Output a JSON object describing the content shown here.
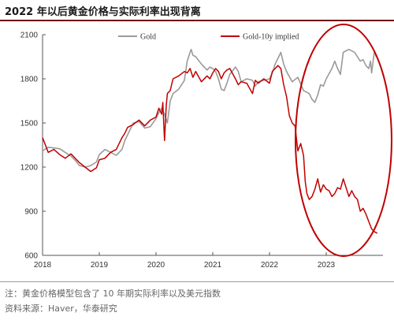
{
  "title": "2022 年以后黄金价格与实际利率出现背离",
  "notes": [
    "注：黄金价格模型包含了 10 年期实际利率以及美元指数",
    "资料来源：Haver，华泰研究"
  ],
  "colors": {
    "gold": "#9a9a9a",
    "implied": "#c00000",
    "ellipse": "#c00000",
    "rule": "#6b0f0f"
  },
  "chart_data": {
    "type": "line",
    "title": "",
    "xlabel": "",
    "ylabel": "",
    "ylim": [
      600,
      2100
    ],
    "yticks": [
      600,
      900,
      1200,
      1500,
      1800,
      2100
    ],
    "xlim": [
      2018.0,
      2024.0
    ],
    "xticks": [
      2018,
      2019,
      2020,
      2021,
      2022,
      2023
    ],
    "legend": "top",
    "grid": false,
    "annotations": [
      "ellipse-highlight-2022-2023"
    ],
    "series": [
      {
        "name": "Gold",
        "color": "#9a9a9a",
        "x": [
          2018.0,
          2018.1,
          2018.2,
          2018.3,
          2018.4,
          2018.5,
          2018.6,
          2018.65,
          2018.75,
          2018.85,
          2018.95,
          2019.0,
          2019.1,
          2019.2,
          2019.3,
          2019.4,
          2019.45,
          2019.5,
          2019.6,
          2019.7,
          2019.8,
          2019.9,
          2020.0,
          2020.05,
          2020.1,
          2020.15,
          2020.2,
          2020.25,
          2020.3,
          2020.4,
          2020.5,
          2020.55,
          2020.6,
          2020.62,
          2020.65,
          2020.7,
          2020.8,
          2020.9,
          2020.95,
          2021.0,
          2021.05,
          2021.1,
          2021.15,
          2021.2,
          2021.25,
          2021.3,
          2021.4,
          2021.45,
          2021.5,
          2021.6,
          2021.7,
          2021.75,
          2021.8,
          2021.9,
          2022.0,
          2022.05,
          2022.1,
          2022.15,
          2022.2,
          2022.25,
          2022.3,
          2022.4,
          2022.5,
          2022.6,
          2022.7,
          2022.75,
          2022.8,
          2022.85,
          2022.9,
          2022.95,
          2023.0,
          2023.1,
          2023.15,
          2023.2,
          2023.25,
          2023.3,
          2023.35,
          2023.4,
          2023.5,
          2023.55,
          2023.6,
          2023.65,
          2023.7,
          2023.75,
          2023.78,
          2023.8,
          2023.85,
          2023.88
        ],
        "values": [
          1310,
          1335,
          1330,
          1325,
          1300,
          1275,
          1235,
          1210,
          1200,
          1210,
          1235,
          1285,
          1320,
          1300,
          1280,
          1320,
          1380,
          1420,
          1500,
          1510,
          1465,
          1475,
          1530,
          1570,
          1600,
          1560,
          1500,
          1650,
          1700,
          1730,
          1790,
          1920,
          1980,
          2000,
          1960,
          1950,
          1900,
          1860,
          1880,
          1870,
          1850,
          1800,
          1730,
          1720,
          1770,
          1830,
          1880,
          1850,
          1780,
          1800,
          1790,
          1750,
          1780,
          1790,
          1800,
          1840,
          1900,
          1940,
          1980,
          1900,
          1850,
          1780,
          1810,
          1720,
          1700,
          1660,
          1640,
          1690,
          1760,
          1750,
          1800,
          1870,
          1920,
          1870,
          1830,
          1980,
          1990,
          2000,
          1980,
          1950,
          1920,
          1930,
          1890,
          1870,
          1920,
          1840,
          1990,
          1950
        ]
      },
      {
        "name": "Gold-10y implied",
        "color": "#c00000",
        "x": [
          2018.0,
          2018.1,
          2018.2,
          2018.3,
          2018.4,
          2018.5,
          2018.6,
          2018.65,
          2018.75,
          2018.85,
          2018.95,
          2019.0,
          2019.1,
          2019.2,
          2019.3,
          2019.4,
          2019.45,
          2019.5,
          2019.6,
          2019.7,
          2019.8,
          2019.9,
          2020.0,
          2020.05,
          2020.1,
          2020.12,
          2020.15,
          2020.18,
          2020.2,
          2020.25,
          2020.3,
          2020.4,
          2020.5,
          2020.55,
          2020.6,
          2020.65,
          2020.7,
          2020.8,
          2020.9,
          2020.95,
          2021.0,
          2021.05,
          2021.1,
          2021.15,
          2021.2,
          2021.25,
          2021.3,
          2021.4,
          2021.45,
          2021.5,
          2021.6,
          2021.7,
          2021.75,
          2021.8,
          2021.9,
          2022.0,
          2022.05,
          2022.1,
          2022.15,
          2022.2,
          2022.25,
          2022.3,
          2022.35,
          2022.4,
          2022.45,
          2022.5,
          2022.55,
          2022.6,
          2022.63,
          2022.66,
          2022.7,
          2022.75,
          2022.8,
          2022.85,
          2022.9,
          2022.95,
          2023.0,
          2023.05,
          2023.1,
          2023.15,
          2023.2,
          2023.25,
          2023.3,
          2023.35,
          2023.4,
          2023.45,
          2023.5,
          2023.55,
          2023.6,
          2023.65,
          2023.7,
          2023.75,
          2023.8,
          2023.85,
          2023.9
        ],
        "values": [
          1400,
          1300,
          1320,
          1285,
          1260,
          1290,
          1250,
          1230,
          1200,
          1170,
          1195,
          1250,
          1260,
          1300,
          1320,
          1400,
          1430,
          1470,
          1490,
          1520,
          1480,
          1520,
          1540,
          1600,
          1560,
          1640,
          1380,
          1620,
          1700,
          1720,
          1800,
          1820,
          1850,
          1840,
          1870,
          1810,
          1850,
          1780,
          1820,
          1800,
          1840,
          1870,
          1850,
          1800,
          1840,
          1860,
          1870,
          1800,
          1760,
          1780,
          1770,
          1700,
          1790,
          1770,
          1800,
          1770,
          1850,
          1870,
          1890,
          1870,
          1760,
          1680,
          1550,
          1500,
          1480,
          1310,
          1360,
          1280,
          1100,
          1020,
          980,
          1000,
          1050,
          1120,
          1030,
          1080,
          1050,
          1040,
          1000,
          1020,
          1060,
          1050,
          1120,
          1060,
          1000,
          1040,
          1000,
          980,
          900,
          920,
          880,
          830,
          780,
          760,
          750
        ]
      }
    ]
  }
}
